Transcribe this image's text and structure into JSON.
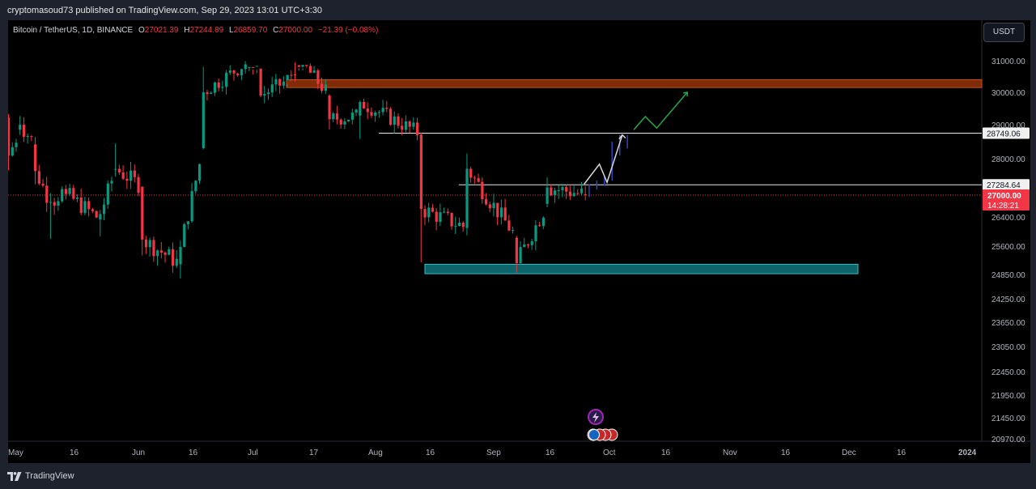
{
  "publisher": {
    "text": "cryptomasoud73 published on TradingView.com, Sep 29, 2023 13:01 UTC+3:30"
  },
  "legend": {
    "symbol": "Bitcoin / TetherUS, 1D, BINANCE",
    "o_label": "O",
    "o_value": "27021.39",
    "h_label": "H",
    "h_value": "27244.89",
    "l_label": "L",
    "l_value": "26859.70",
    "c_label": "C",
    "c_value": "27000.00",
    "change": "−21.39 (−0.08%)"
  },
  "currency_button": "USDT",
  "footer": {
    "brand": "TradingView"
  },
  "colors": {
    "up": "#089981",
    "down": "#f23645",
    "resistance_zone": "#7f2b08",
    "support_zone": "#0e6f75",
    "projection_up": "#3046b8",
    "green_path": "#26a845",
    "white_path": "#d8d8d8"
  },
  "chart_data": {
    "type": "candlestick",
    "symbol": "Bitcoin / TetherUS",
    "interval": "1D",
    "exchange": "BINANCE",
    "y_axis_ticks": [
      "31000.00",
      "30000.00",
      "29000.00",
      "28000.00",
      "26400.00",
      "25600.00",
      "24850.00",
      "24250.00",
      "23650.00",
      "23050.00",
      "22450.00",
      "21950.00",
      "21450.00",
      "20970.00"
    ],
    "x_axis_ticks": [
      "May",
      "16",
      "Jun",
      "16",
      "Jul",
      "17",
      "Aug",
      "16",
      "Sep",
      "16",
      "Oct",
      "16",
      "Nov",
      "16",
      "Dec",
      "16",
      "2024"
    ],
    "price_labels": [
      {
        "text": "28749.06",
        "value": 28749.06
      },
      {
        "text": "27284.64",
        "value": 27284.64
      },
      {
        "text": "27000.00",
        "value": 27000.0,
        "countdown": "14:28:21"
      }
    ],
    "horizontal_lines": [
      28749.06,
      27284.64
    ],
    "last_price": 27000.0,
    "zones": [
      {
        "type": "resistance",
        "from": 30150,
        "to": 30400
      },
      {
        "type": "support",
        "from": 24870,
        "to": 25120
      }
    ],
    "candles_close_approx": [
      {
        "date": "2023-05-01",
        "o": 29230,
        "h": 29330,
        "l": 27680,
        "c": 28090
      },
      {
        "date": "2023-05-04",
        "o": 28850,
        "h": 29270,
        "l": 28700,
        "c": 29000
      },
      {
        "date": "2023-05-08",
        "o": 28420,
        "h": 28640,
        "l": 27300,
        "c": 27660
      },
      {
        "date": "2023-05-12",
        "o": 26800,
        "h": 27050,
        "l": 25800,
        "c": 26810
      },
      {
        "date": "2023-05-16",
        "o": 27170,
        "h": 27280,
        "l": 26880,
        "c": 27030
      },
      {
        "date": "2023-05-25",
        "o": 26330,
        "h": 26590,
        "l": 25870,
        "c": 26480
      },
      {
        "date": "2023-05-29",
        "o": 27700,
        "h": 28450,
        "l": 27510,
        "c": 27720
      },
      {
        "date": "2023-06-05",
        "o": 27230,
        "h": 27240,
        "l": 25350,
        "c": 25780
      },
      {
        "date": "2023-06-15",
        "o": 25120,
        "h": 25750,
        "l": 24750,
        "c": 25580
      },
      {
        "date": "2023-06-21",
        "o": 28310,
        "h": 30800,
        "l": 28270,
        "c": 30000
      },
      {
        "date": "2023-07-06",
        "o": 31250,
        "h": 31500,
        "l": 29850,
        "c": 29900
      },
      {
        "date": "2023-07-13",
        "o": 30380,
        "h": 31820,
        "l": 30260,
        "c": 31450
      },
      {
        "date": "2023-07-24",
        "o": 29900,
        "h": 29940,
        "l": 28860,
        "c": 29170
      },
      {
        "date": "2023-08-01",
        "o": 29280,
        "h": 29740,
        "l": 28580,
        "c": 29700
      },
      {
        "date": "2023-08-17",
        "o": 28710,
        "h": 28760,
        "l": 25170,
        "c": 26620
      },
      {
        "date": "2023-08-29",
        "o": 26100,
        "h": 28150,
        "l": 25900,
        "c": 27720
      },
      {
        "date": "2023-09-11",
        "o": 25830,
        "h": 25880,
        "l": 24900,
        "c": 25150
      },
      {
        "date": "2023-09-19",
        "o": 26760,
        "h": 27490,
        "l": 26670,
        "c": 27210
      },
      {
        "date": "2023-09-29",
        "o": 27020,
        "h": 27245,
        "l": 26860,
        "c": 27000
      }
    ]
  }
}
